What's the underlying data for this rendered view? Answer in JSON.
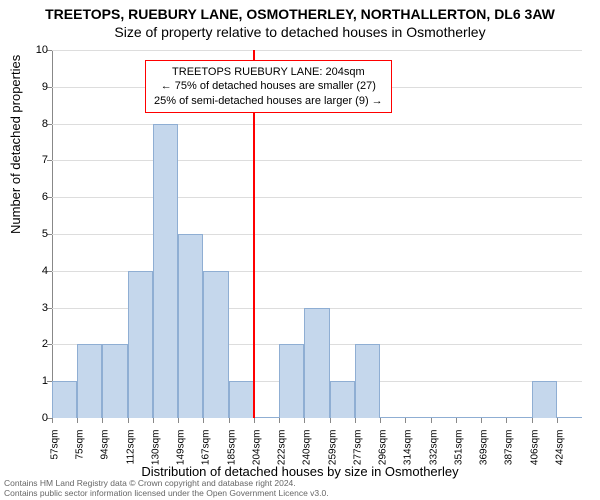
{
  "chart": {
    "type": "histogram",
    "title_line1": "TREETOPS, RUEBURY LANE, OSMOTHERLEY, NORTHALLERTON, DL6 3AW",
    "title_line2": "Size of property relative to detached houses in Osmotherley",
    "title_fontsize": 14,
    "ylabel": "Number of detached properties",
    "xlabel": "Distribution of detached houses by size in Osmotherley",
    "label_fontsize": 13,
    "tick_fontsize": 11,
    "background_color": "#ffffff",
    "grid_color": "#dddddd",
    "bar_fill": "#c5d7ec",
    "bar_stroke": "#8faed3",
    "ylim": [
      0,
      10
    ],
    "yticks": [
      0,
      1,
      2,
      3,
      4,
      5,
      6,
      7,
      8,
      9,
      10
    ],
    "categories": [
      "57sqm",
      "75sqm",
      "94sqm",
      "112sqm",
      "130sqm",
      "149sqm",
      "167sqm",
      "185sqm",
      "204sqm",
      "222sqm",
      "240sqm",
      "259sqm",
      "277sqm",
      "296sqm",
      "314sqm",
      "332sqm",
      "351sqm",
      "369sqm",
      "387sqm",
      "406sqm",
      "424sqm"
    ],
    "values": [
      1,
      2,
      2,
      4,
      8,
      5,
      4,
      1,
      0,
      2,
      3,
      1,
      2,
      0,
      0,
      0,
      0,
      0,
      0,
      1,
      0
    ],
    "highlight_value": 204,
    "highlight_color": "#ff0000",
    "annotation": {
      "line1": "TREETOPS RUEBURY LANE: 204sqm",
      "line2": "← 75% of detached houses are smaller (27)",
      "line3": "25% of semi-detached houses are larger (9) →",
      "border_color": "#ff0000",
      "fontsize": 11
    },
    "footer_line1": "Contains HM Land Registry data © Crown copyright and database right 2024.",
    "footer_line2": "Contains public sector information licensed under the Open Government Licence v3.0."
  }
}
